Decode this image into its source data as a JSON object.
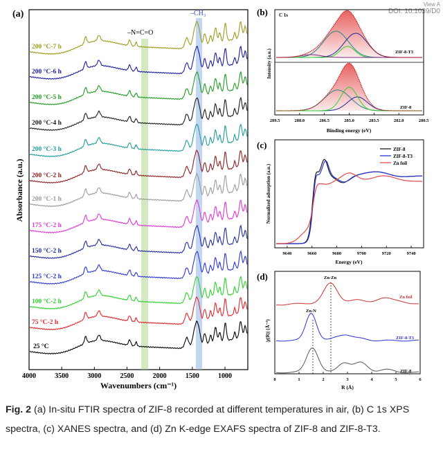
{
  "corner": {
    "view": "View A",
    "doi": "DOI: 10.1039/D0"
  },
  "colors": {
    "c25": "#000000",
    "c75": "#e6242a",
    "c100": "#2cd12c",
    "c125": "#2a34d6",
    "c150": "#1e2aa0",
    "c175": "#e236d8",
    "c200_1": "#9a9a9a",
    "c200_2": "#8b1d1d",
    "c200_3": "#1e9b9b",
    "c200_4": "#1a1a1a",
    "c200_5": "#1e9b1e",
    "c200_6": "#1a1aa0",
    "c200_7": "#9b9b1a"
  },
  "panel_a": {
    "letter": "(a)",
    "ylabel": "Absorbance (a.u.)",
    "xlabel": "Wavenumbers (cm⁻¹)",
    "ticks": [
      "4000",
      "3500",
      "3000",
      "2500",
      "2000",
      "1500",
      "1000"
    ],
    "band_nco": "–N=C=O",
    "band_ch3": "–CH₃",
    "labels": [
      "200 °C-7 h",
      "200 °C-6 h",
      "200 °C-5 h",
      "200 °C-4 h",
      "200 °C-3 h",
      "200 °C-2 h",
      "200 °C-1 h",
      "175 °C-2 h",
      "150 °C-2 h",
      "125 °C-2 h",
      "100 °C-2 h",
      "75 °C-2 h",
      "25 °C"
    ]
  },
  "panel_b": {
    "letter": "(b)",
    "title": "C 1s",
    "ylabel": "Intensity (a.u.)",
    "xlabel": "Binding energy (eV)",
    "ticks": [
      "289.5",
      "288.0",
      "286.5",
      "285.0",
      "283.5",
      "282.0",
      "280.5"
    ],
    "top_label": "ZIF-8-T3",
    "bottom_label": "ZIF-8"
  },
  "panel_c": {
    "letter": "(c)",
    "ylabel": "Normalized adsorption (a.u.)",
    "xlabel": "Energy (eV)",
    "ticks": [
      "9640",
      "9660",
      "9680",
      "9700",
      "9720",
      "9740"
    ],
    "legend": [
      "ZIF-8",
      "ZIF-8-T3",
      "Zn foil"
    ]
  },
  "panel_d": {
    "letter": "(d)",
    "ylabel": "|χ(R)| (Å⁻³)",
    "xlabel": "R (Å)",
    "ticks": [
      "0",
      "1",
      "2",
      "3",
      "4",
      "5",
      "6"
    ],
    "zn_zn": "Zn-Zn",
    "zn_n": "Zn-N",
    "label_foil": "Zn foil",
    "label_t3": "ZIF-8-T3",
    "label_zif": "ZIF-8"
  },
  "caption": {
    "fig": "Fig. 2",
    "text": "(a) In-situ FTIR spectra of ZIF-8 recorded at different temperatures in air, (b) C 1s XPS spectra, (c) XANES spectra, and (d) Zn K-edge EXAFS spectra of ZIF-8 and ZIF-8-T3."
  }
}
